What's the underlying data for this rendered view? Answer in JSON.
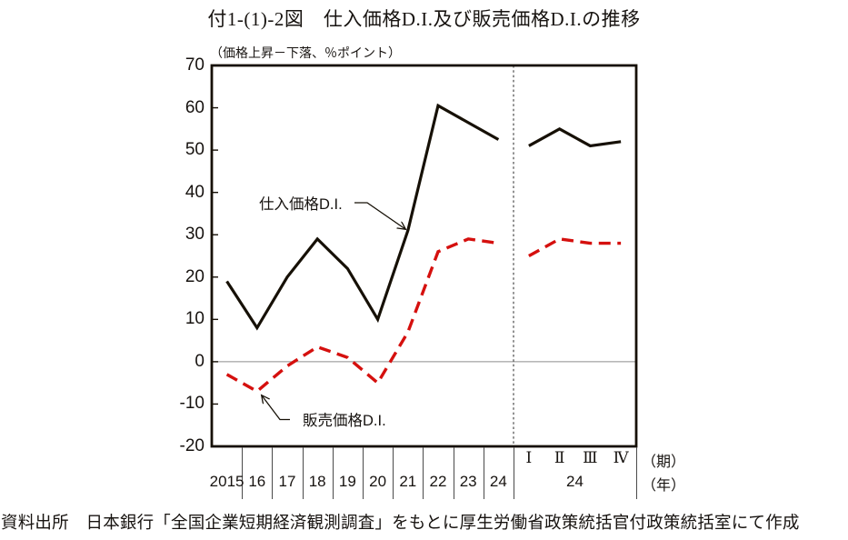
{
  "title": "付1-(1)-2図　仕入価格D.I.及び販売価格D.I.の推移",
  "axis": {
    "period_suffix": "（期）",
    "year_suffix": "（年）",
    "quarter_year_label": "24"
  },
  "chart_data": {
    "type": "line",
    "title": "仕入価格D.I.及び販売価格D.I.の推移",
    "ylabel": "（価格上昇－下落、％ポイント）",
    "ylim": [
      -20,
      70
    ],
    "yticks": [
      70,
      60,
      50,
      40,
      30,
      20,
      10,
      0,
      -10,
      -20
    ],
    "grid": "zero-line-only",
    "legend_position": "inline-callouts",
    "x_annual_categories": [
      "2015",
      "16",
      "17",
      "18",
      "19",
      "20",
      "21",
      "22",
      "23",
      "24"
    ],
    "x_quarter_categories": [
      "Ⅰ",
      "Ⅱ",
      "Ⅲ",
      "Ⅳ"
    ],
    "x_quarter_year": "24",
    "series": [
      {
        "name": "仕入価格D.I.",
        "color": "#161006",
        "line_style": "solid",
        "annual_values": [
          19,
          8,
          20,
          29,
          22,
          10,
          31,
          60.5,
          56.5,
          52.5
        ],
        "quarterly_2024_values": [
          51,
          55,
          51,
          52
        ]
      },
      {
        "name": "販売価格D.I.",
        "color": "#d5100e",
        "line_style": "dashed",
        "annual_values": [
          -3,
          -7,
          -1,
          3.5,
          1,
          -5,
          7,
          26,
          29,
          28
        ],
        "quarterly_2024_values": [
          25,
          29,
          28,
          28
        ]
      }
    ]
  },
  "source": "資料出所　日本銀行「全国企業短期経済観測調査」をもとに厚生労働省政策統括官付政策統括室にて作成"
}
